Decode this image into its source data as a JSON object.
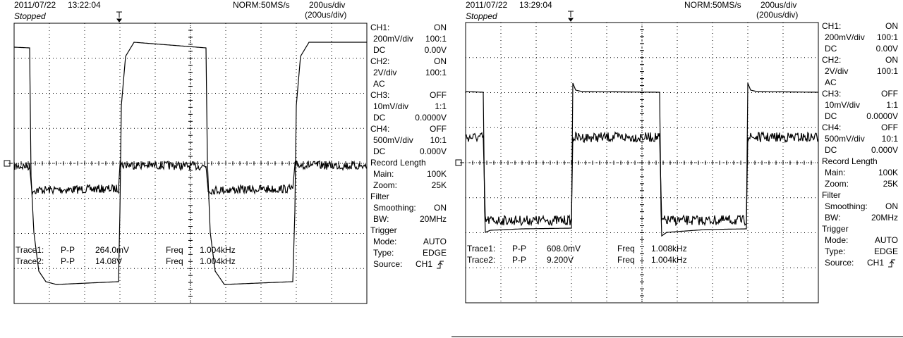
{
  "screens": [
    {
      "date": "2011/07/22",
      "time": "13:22:04",
      "status": "Stopped",
      "mode": "NORM:50MS/s",
      "timebase": "200us/div",
      "zoom_timebase": "(200us/div)",
      "measurements": [
        {
          "trace": "Trace1:",
          "type": "P-P",
          "value": "264.0mV",
          "freq_label": "Freq",
          "freq": "1.004kHz"
        },
        {
          "trace": "Trace2:",
          "type": "P-P",
          "value": "14.08V",
          "freq_label": "Freq",
          "freq": "1.004kHz"
        }
      ],
      "panel": [
        {
          "title": "CH1:",
          "title_value": "ON",
          "rows": [
            {
              "label": "200mV/div",
              "value": "100:1"
            },
            {
              "label": "DC",
              "value": "0.00V"
            }
          ]
        },
        {
          "title": "CH2:",
          "title_value": "ON",
          "rows": [
            {
              "label": "2V/div",
              "value": "100:1"
            },
            {
              "label": "AC"
            }
          ]
        },
        {
          "title": "CH3:",
          "title_value": "OFF",
          "rows": [
            {
              "label": "10mV/div",
              "value": "1:1"
            },
            {
              "label": "DC",
              "value": "0.0000V"
            }
          ]
        },
        {
          "title": "CH4:",
          "title_value": "OFF",
          "rows": [
            {
              "label": "500mV/div",
              "value": "10:1"
            },
            {
              "label": "DC",
              "value": "0.000V"
            }
          ]
        },
        {
          "title": "Record Length",
          "rows": [
            {
              "label": "Main:",
              "value": "100K"
            },
            {
              "label": "Zoom:",
              "value": "25K"
            }
          ]
        },
        {
          "title": "Filter",
          "rows": [
            {
              "label": "Smoothing:",
              "value": "ON"
            },
            {
              "label": "BW:",
              "value": "20MHz"
            }
          ]
        },
        {
          "title": "Trigger",
          "rows": [
            {
              "label": "Mode:",
              "value": "AUTO"
            },
            {
              "label": "Type:",
              "value": "EDGE"
            },
            {
              "label": "Source:",
              "value": "CH1"
            }
          ]
        }
      ]
    },
    {
      "date": "2011/07/22",
      "time": "13:29:04",
      "status": "Stopped",
      "mode": "NORM:50MS/s",
      "timebase": "200us/div",
      "zoom_timebase": "(200us/div)",
      "measurements": [
        {
          "trace": "Trace1:",
          "type": "P-P",
          "value": "608.0mV",
          "freq_label": "Freq",
          "freq": "1.008kHz"
        },
        {
          "trace": "Trace2:",
          "type": "P-P",
          "value": "9.200V",
          "freq_label": "Freq",
          "freq": "1.004kHz"
        }
      ],
      "panel": [
        {
          "title": "CH1:",
          "title_value": "ON",
          "rows": [
            {
              "label": "200mV/div",
              "value": "100:1"
            },
            {
              "label": "DC",
              "value": "0.00V"
            }
          ]
        },
        {
          "title": "CH2:",
          "title_value": "ON",
          "rows": [
            {
              "label": "2V/div",
              "value": "100:1"
            },
            {
              "label": "AC"
            }
          ]
        },
        {
          "title": "CH3:",
          "title_value": "OFF",
          "rows": [
            {
              "label": "10mV/div",
              "value": "1:1"
            },
            {
              "label": "DC",
              "value": "0.0000V"
            }
          ]
        },
        {
          "title": "CH4:",
          "title_value": "OFF",
          "rows": [
            {
              "label": "500mV/div",
              "value": "10:1"
            },
            {
              "label": "DC",
              "value": "0.000V"
            }
          ]
        },
        {
          "title": "Record Length",
          "rows": [
            {
              "label": "Main:",
              "value": "100K"
            },
            {
              "label": "Zoom:",
              "value": "25K"
            }
          ]
        },
        {
          "title": "Filter",
          "rows": [
            {
              "label": "Smoothing:",
              "value": "ON"
            },
            {
              "label": "BW:",
              "value": "20MHz"
            }
          ]
        },
        {
          "title": "Trigger",
          "rows": [
            {
              "label": "Mode:",
              "value": "AUTO"
            },
            {
              "label": "Type:",
              "value": "EDGE"
            },
            {
              "label": "Source:",
              "value": "CH1"
            }
          ]
        }
      ]
    }
  ]
}
